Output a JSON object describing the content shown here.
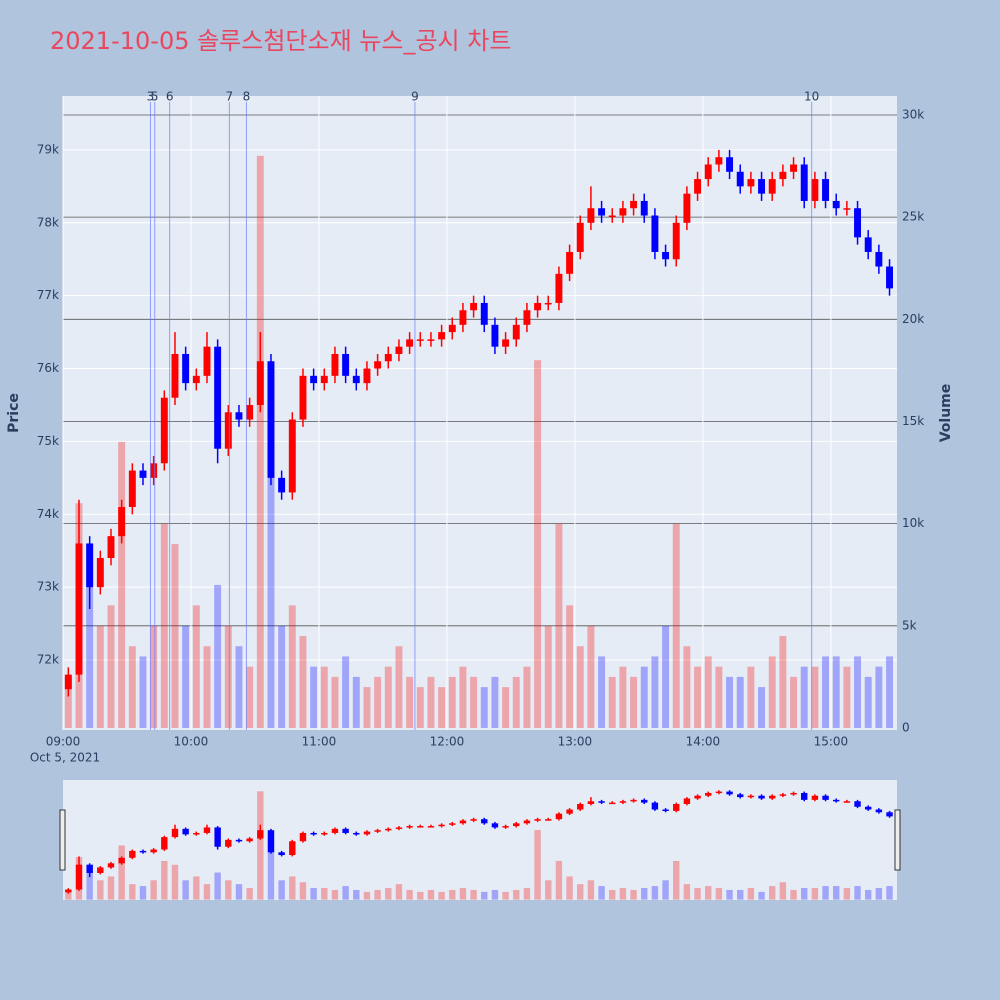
{
  "chart_data": {
    "type": "candlestick",
    "title": "2021-10-05 솔루스첨단소재 뉴스_공시 차트",
    "x": [
      "09:00",
      "09:05",
      "09:10",
      "09:15",
      "09:20",
      "09:25",
      "09:30",
      "09:35",
      "09:40",
      "09:45",
      "09:50",
      "09:55",
      "10:00",
      "10:05",
      "10:10",
      "10:15",
      "10:20",
      "10:25",
      "10:30",
      "10:35",
      "10:40",
      "10:45",
      "10:50",
      "10:55",
      "11:00",
      "11:05",
      "11:10",
      "11:15",
      "11:20",
      "11:25",
      "11:30",
      "11:35",
      "11:40",
      "11:45",
      "11:50",
      "11:55",
      "12:00",
      "12:05",
      "12:10",
      "12:15",
      "12:20",
      "12:25",
      "12:30",
      "12:35",
      "12:40",
      "12:45",
      "12:50",
      "12:55",
      "13:00",
      "13:05",
      "13:10",
      "13:15",
      "13:20",
      "13:25",
      "13:30",
      "13:35",
      "13:40",
      "13:45",
      "13:50",
      "13:55",
      "14:00",
      "14:05",
      "14:10",
      "14:15",
      "14:20",
      "14:25",
      "14:30",
      "14:35",
      "14:40",
      "14:45",
      "14:50",
      "14:55",
      "15:00",
      "15:05",
      "15:10",
      "15:15",
      "15:20",
      "15:25"
    ],
    "open": [
      71600,
      71800,
      73600,
      73000,
      73400,
      73700,
      74100,
      74600,
      74500,
      74700,
      75600,
      76200,
      75800,
      75900,
      76300,
      74900,
      75400,
      75300,
      75500,
      76100,
      74500,
      74300,
      75300,
      75900,
      75800,
      75900,
      76200,
      75900,
      75800,
      76000,
      76100,
      76200,
      76300,
      76400,
      76400,
      76400,
      76500,
      76600,
      76800,
      76900,
      76600,
      76300,
      76400,
      76600,
      76800,
      76900,
      76900,
      77300,
      77600,
      78000,
      78200,
      78100,
      78100,
      78200,
      78300,
      78100,
      77600,
      77500,
      78000,
      78400,
      78600,
      78800,
      78900,
      78700,
      78500,
      78600,
      78400,
      78600,
      78700,
      78800,
      78300,
      78600,
      78300,
      78200,
      78200,
      77800,
      77600,
      77400
    ],
    "high": [
      71900,
      74200,
      73700,
      73500,
      73800,
      74200,
      74700,
      74700,
      74800,
      75700,
      76500,
      76300,
      76000,
      76500,
      76400,
      75500,
      75500,
      75600,
      76500,
      76200,
      74600,
      75400,
      76000,
      76000,
      76000,
      76300,
      76300,
      76000,
      76100,
      76200,
      76300,
      76400,
      76500,
      76500,
      76500,
      76600,
      76700,
      76900,
      77000,
      77000,
      76700,
      76500,
      76700,
      76900,
      77000,
      77000,
      77400,
      77700,
      78100,
      78500,
      78300,
      78200,
      78300,
      78400,
      78400,
      78200,
      77700,
      78100,
      78500,
      78700,
      78900,
      79000,
      79000,
      78800,
      78700,
      78700,
      78700,
      78800,
      78900,
      78900,
      78700,
      78700,
      78400,
      78300,
      78300,
      77900,
      77700,
      77500
    ],
    "low": [
      71500,
      71700,
      72700,
      72900,
      73300,
      73600,
      74000,
      74400,
      74400,
      74600,
      75500,
      75700,
      75700,
      75800,
      74700,
      74800,
      75200,
      75200,
      75400,
      74400,
      74200,
      74200,
      75200,
      75700,
      75700,
      75800,
      75800,
      75700,
      75700,
      75900,
      76000,
      76100,
      76200,
      76300,
      76300,
      76300,
      76400,
      76500,
      76700,
      76500,
      76200,
      76200,
      76300,
      76500,
      76700,
      76800,
      76800,
      77200,
      77500,
      77900,
      78000,
      78000,
      78000,
      78100,
      78000,
      77500,
      77400,
      77400,
      77900,
      78300,
      78500,
      78700,
      78600,
      78400,
      78400,
      78300,
      78300,
      78500,
      78600,
      78200,
      78200,
      78200,
      78100,
      78100,
      77700,
      77500,
      77300,
      77000
    ],
    "close": [
      71800,
      73600,
      73000,
      73400,
      73700,
      74100,
      74600,
      74500,
      74700,
      75600,
      76200,
      75800,
      75900,
      76300,
      74900,
      75400,
      75300,
      75500,
      76100,
      74500,
      74300,
      75300,
      75900,
      75800,
      75900,
      76200,
      75900,
      75800,
      76000,
      76100,
      76200,
      76300,
      76400,
      76400,
      76400,
      76500,
      76600,
      76800,
      76900,
      76600,
      76300,
      76400,
      76600,
      76800,
      76900,
      76900,
      77300,
      77600,
      78000,
      78200,
      78100,
      78100,
      78200,
      78300,
      78100,
      77600,
      77500,
      78000,
      78400,
      78600,
      78800,
      78900,
      78700,
      78500,
      78600,
      78400,
      78600,
      78700,
      78800,
      78300,
      78600,
      78300,
      78200,
      78200,
      77800,
      77600,
      77400,
      77100
    ],
    "volume": [
      2500,
      11000,
      9000,
      5000,
      6000,
      14000,
      4000,
      3500,
      5000,
      10000,
      9000,
      5000,
      6000,
      4000,
      7000,
      5000,
      4000,
      3000,
      28000,
      17000,
      5000,
      6000,
      4500,
      3000,
      3000,
      2500,
      3500,
      2500,
      2000,
      2500,
      3000,
      4000,
      2500,
      2000,
      2500,
      2000,
      2500,
      3000,
      2500,
      2000,
      2500,
      2000,
      2500,
      3000,
      18000,
      5000,
      10000,
      6000,
      4000,
      5000,
      3500,
      2500,
      3000,
      2500,
      3000,
      3500,
      5000,
      10000,
      4000,
      3000,
      3500,
      3000,
      2500,
      2500,
      3000,
      2000,
      3500,
      4500,
      2500,
      3000,
      3000,
      3500,
      3500,
      3000,
      3500,
      2500,
      3000,
      3500
    ],
    "up_color": "#ff0000",
    "down_color": "#0000ff",
    "xlim": [
      "09:00",
      "15:31"
    ],
    "xticks": [
      "09:00",
      "10:00",
      "11:00",
      "12:00",
      "13:00",
      "14:00",
      "15:00"
    ],
    "x_date_label": "Oct 5, 2021",
    "ylabel": "Price",
    "y2label": "Volume",
    "ylim": [
      71040,
      79740
    ],
    "yticks": [
      {
        "value": 72000,
        "label": "72k"
      },
      {
        "value": 73000,
        "label": "73k"
      },
      {
        "value": 74000,
        "label": "74k"
      },
      {
        "value": 75000,
        "label": "75k"
      },
      {
        "value": 76000,
        "label": "76k"
      },
      {
        "value": 77000,
        "label": "77k"
      },
      {
        "value": 78000,
        "label": "78k"
      },
      {
        "value": 79000,
        "label": "79k"
      }
    ],
    "y2lim": [
      -100,
      30930
    ],
    "y2ticks": [
      0,
      {
        "value": 5000,
        "label": "5k"
      },
      {
        "value": 10000,
        "label": "10k"
      },
      {
        "value": 15000,
        "label": "15k"
      },
      {
        "value": 20000,
        "label": "20k"
      },
      {
        "value": 25000,
        "label": "25k"
      },
      {
        "value": 30000,
        "label": "30k"
      }
    ],
    "annotations": [
      {
        "x": "09:41",
        "label": "3"
      },
      {
        "x": "09:43",
        "label": "5"
      },
      {
        "x": "09:50",
        "label": "6"
      },
      {
        "x": "10:18",
        "label": "7"
      },
      {
        "x": "10:26",
        "label": "8"
      },
      {
        "x": "11:45",
        "label": "9"
      },
      {
        "x": "14:51",
        "label": "10"
      }
    ],
    "grid": true,
    "rangeslider": true
  }
}
